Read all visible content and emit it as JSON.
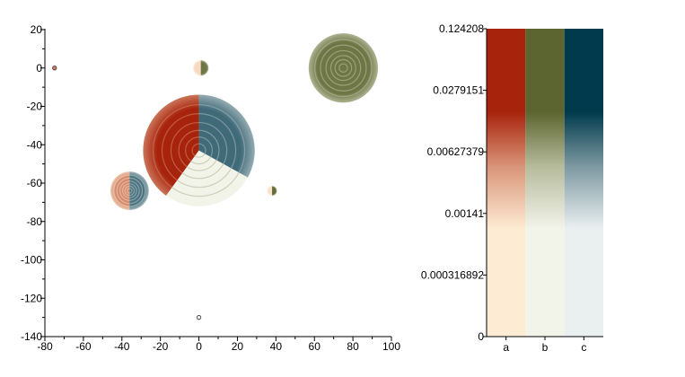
{
  "chart_data": {
    "type": "scatter",
    "description_free": true,
    "x_ticks": [
      "-80",
      "-60",
      "-40",
      "-20",
      "0",
      "20",
      "40",
      "60",
      "80",
      "100"
    ],
    "y_ticks": [
      "20",
      "0",
      "-20",
      "-40",
      "-60",
      "-80",
      "-100",
      "-120",
      "-140"
    ],
    "xlim": [
      -80,
      100
    ],
    "ylim": [
      -140,
      20
    ],
    "colors": {
      "a": {
        "light": "#fdebd3",
        "mid": "#d9967a",
        "dark": "#a8230c"
      },
      "b": {
        "light": "#f2f4ea",
        "mid": "#b7bc9d",
        "dark": "#5c652f"
      },
      "c": {
        "light": "#eaf0f0",
        "mid": "#7f9aa3",
        "dark": "#003a4c"
      }
    },
    "points": [
      {
        "x": 0,
        "y": -43,
        "r": 29,
        "slices": [
          {
            "cat": "a",
            "from": 0,
            "to": 0.4,
            "intensity": 1.0
          },
          {
            "cat": "b",
            "from": 0.4,
            "to": 0.67,
            "intensity": 0.0
          },
          {
            "cat": "c",
            "from": 0.67,
            "to": 1.0,
            "intensity": 0.75
          }
        ]
      },
      {
        "x": -36,
        "y": -64,
        "r": 10,
        "slices": [
          {
            "cat": "a",
            "from": 0,
            "to": 0.5,
            "intensity": 0.55
          },
          {
            "cat": "c",
            "from": 0.5,
            "to": 1.0,
            "intensity": 0.7
          }
        ]
      },
      {
        "x": 75,
        "y": 0,
        "r": 18,
        "slices": [
          {
            "cat": "b",
            "from": 0,
            "to": 1.0,
            "intensity": 0.9
          }
        ]
      },
      {
        "x": 1,
        "y": 0,
        "r": 4,
        "slices": [
          {
            "cat": "a",
            "from": 0,
            "to": 0.5,
            "intensity": 0.1
          },
          {
            "cat": "b",
            "from": 0.5,
            "to": 1.0,
            "intensity": 0.9
          }
        ]
      },
      {
        "x": 38,
        "y": -64,
        "r": 2.5,
        "slices": [
          {
            "cat": "a",
            "from": 0,
            "to": 0.5,
            "intensity": 0.05
          },
          {
            "cat": "b",
            "from": 0.5,
            "to": 1.0,
            "intensity": 0.95
          }
        ]
      },
      {
        "x": -75,
        "y": 0,
        "r": 1,
        "slices": [
          {
            "cat": "a",
            "from": 0,
            "to": 1.0,
            "intensity": 0.6
          }
        ]
      },
      {
        "x": 0,
        "y": -130,
        "r": 1,
        "slices": [
          {
            "cat": "c",
            "from": 0,
            "to": 1.0,
            "intensity": 0.0
          }
        ]
      }
    ],
    "colorbar": {
      "ticks": [
        "0.124208",
        "0.0279151",
        "0.00627379",
        "0.00141",
        "0.000316892",
        "0"
      ],
      "categories": [
        "a",
        "b",
        "c"
      ]
    }
  }
}
